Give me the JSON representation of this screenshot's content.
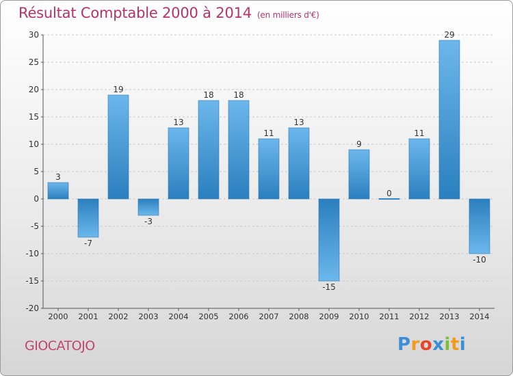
{
  "header": {
    "title": "Résultat Comptable 2000 à 2014",
    "subtitle": "(en milliers d'€)"
  },
  "footer": {
    "commune": "GIOCATOJO",
    "logo_letters": [
      "P",
      "r",
      "o",
      "x",
      "i",
      "t",
      "i"
    ]
  },
  "colors": {
    "title": "#b4336b",
    "bar_light": "#6cb7ec",
    "bar_dark": "#2b7fbe",
    "logo": [
      "#3a8fd6",
      "#f29b1f",
      "#e8452c",
      "#3a8fd6",
      "#7cbf3a",
      "#f29b1f",
      "#3a8fd6"
    ]
  },
  "chart_data": {
    "type": "bar",
    "title": "Résultat Comptable 2000 à 2014",
    "subtitle": "(en milliers d'€)",
    "categories": [
      "2000",
      "2001",
      "2002",
      "2003",
      "2004",
      "2005",
      "2006",
      "2007",
      "2008",
      "2009",
      "2010",
      "2011",
      "2012",
      "2013",
      "2014"
    ],
    "values": [
      3,
      -7,
      19,
      -3,
      13,
      18,
      18,
      11,
      13,
      -15,
      9,
      0,
      11,
      29,
      -10
    ],
    "data_labels": [
      "3",
      "-7",
      "19",
      "-3",
      "13",
      "18",
      "18",
      "11",
      "13",
      "-15",
      "9",
      "0",
      "11",
      "29",
      "-10"
    ],
    "ylim": [
      -20,
      30
    ],
    "yticks": [
      30,
      25,
      20,
      15,
      10,
      5,
      0,
      -5,
      -10,
      -15,
      -20
    ],
    "grid": "horizontal dashed",
    "legend": "none"
  }
}
